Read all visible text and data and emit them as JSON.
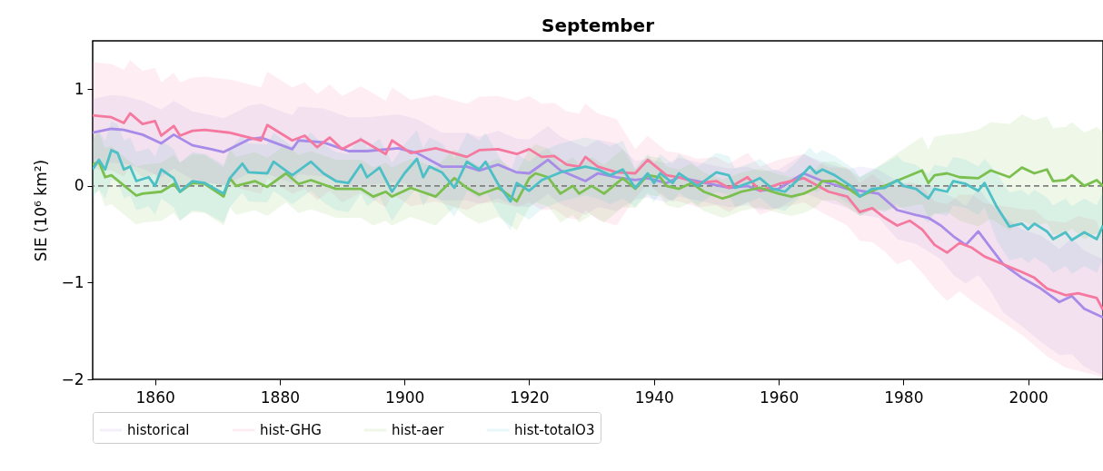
{
  "chart_data": {
    "type": "line",
    "title": "September",
    "ylabel": "SIE (10⁶ km²)",
    "xlim": [
      1850,
      2012
    ],
    "xticks": [
      1860,
      1880,
      1900,
      1920,
      1940,
      1960,
      1980,
      2000
    ],
    "ylim": [
      -2,
      1.5
    ],
    "yticks": [
      {
        "value": -2,
        "label": "−2"
      },
      {
        "value": -1,
        "label": "−1"
      },
      0,
      1
    ],
    "legend": "bottom",
    "line_style": "solid",
    "ref_lines": [
      {
        "axis": "y",
        "value": 0,
        "color": "#808080",
        "line_style": "dashed"
      }
    ],
    "series": [
      {
        "name": "historical",
        "color": "#a78be8",
        "x": [
          1850,
          1853,
          1855,
          1858,
          1861,
          1863,
          1866,
          1869,
          1871,
          1875,
          1877,
          1882,
          1883,
          1887,
          1891,
          1894,
          1899,
          1902,
          1906,
          1910,
          1912,
          1915,
          1918,
          1920,
          1923,
          1925,
          1929,
          1931,
          1934,
          1937,
          1939,
          1942,
          1944,
          1949,
          1952,
          1955,
          1957,
          1960,
          1964,
          1967,
          1971,
          1973,
          1976,
          1979,
          1982,
          1984,
          1986,
          1988,
          1990,
          1992,
          1994,
          1996,
          1999,
          2002,
          2005,
          2007,
          2009,
          2012
        ],
        "values": [
          0.55,
          0.59,
          0.58,
          0.53,
          0.44,
          0.53,
          0.42,
          0.38,
          0.35,
          0.48,
          0.5,
          0.38,
          0.47,
          0.45,
          0.36,
          0.36,
          0.39,
          0.34,
          0.2,
          0.2,
          0.16,
          0.22,
          0.14,
          0.13,
          0.27,
          0.16,
          0.05,
          0.13,
          0.09,
          0.06,
          0.08,
          0.03,
          0.09,
          0.02,
          -0.02,
          0,
          -0.05,
          -0.03,
          0.13,
          0.05,
          -0.03,
          -0.05,
          -0.08,
          -0.25,
          -0.3,
          -0.33,
          -0.41,
          -0.52,
          -0.61,
          -0.47,
          -0.64,
          -0.81,
          -0.95,
          -1.06,
          -1.2,
          -1.14,
          -1.27,
          -1.36
        ],
        "lower": [
          0.2,
          0.24,
          0.23,
          0.18,
          0.09,
          0.18,
          0.07,
          0.03,
          0,
          0.13,
          0.15,
          0.03,
          0.12,
          0.1,
          0.01,
          0.01,
          0.04,
          -0.01,
          -0.15,
          -0.15,
          -0.19,
          -0.13,
          -0.21,
          -0.22,
          -0.08,
          -0.19,
          -0.3,
          -0.22,
          -0.26,
          -0.14,
          -0.12,
          -0.17,
          -0.11,
          -0.18,
          -0.22,
          -0.2,
          -0.25,
          -0.23,
          -0.07,
          -0.15,
          -0.23,
          -0.3,
          -0.33,
          -0.55,
          -0.6,
          -0.68,
          -0.76,
          -0.92,
          -1.01,
          -0.92,
          -1.09,
          -1.31,
          -1.45,
          -1.61,
          -1.75,
          -1.74,
          -1.87,
          -1.96
        ],
        "upper": [
          0.9,
          0.94,
          0.93,
          0.88,
          0.79,
          0.88,
          0.77,
          0.73,
          0.7,
          0.83,
          0.85,
          0.73,
          0.82,
          0.8,
          0.71,
          0.71,
          0.74,
          0.69,
          0.55,
          0.55,
          0.51,
          0.57,
          0.49,
          0.48,
          0.62,
          0.51,
          0.4,
          0.48,
          0.44,
          0.26,
          0.28,
          0.23,
          0.29,
          0.22,
          0.18,
          0.2,
          0.15,
          0.17,
          0.33,
          0.25,
          0.17,
          0.2,
          0.17,
          0.05,
          0,
          0.02,
          -0.06,
          -0.12,
          -0.21,
          -0.02,
          -0.19,
          -0.31,
          -0.45,
          -0.51,
          -0.65,
          -0.54,
          -0.67,
          -0.76
        ]
      },
      {
        "name": "hist-GHG",
        "color": "#f5799f",
        "x": [
          1850,
          1853,
          1855,
          1856,
          1858,
          1860,
          1861,
          1863,
          1864,
          1866,
          1868,
          1872,
          1877,
          1878,
          1882,
          1884,
          1886,
          1888,
          1890,
          1893,
          1897,
          1898,
          1901,
          1905,
          1910,
          1912,
          1915,
          1918,
          1920,
          1922,
          1924,
          1926,
          1928,
          1929,
          1931,
          1934,
          1937,
          1939,
          1942,
          1944,
          1947,
          1950,
          1952,
          1955,
          1957,
          1960,
          1964,
          1968,
          1971,
          1973,
          1975,
          1977,
          1979,
          1981,
          1983,
          1985,
          1987,
          1989,
          1991,
          1993,
          1996,
          1999,
          2001,
          2003,
          2006,
          2008,
          2011,
          2012
        ],
        "values": [
          0.73,
          0.71,
          0.65,
          0.75,
          0.64,
          0.67,
          0.52,
          0.62,
          0.52,
          0.57,
          0.58,
          0.55,
          0.47,
          0.63,
          0.47,
          0.52,
          0.4,
          0.5,
          0.38,
          0.48,
          0.33,
          0.47,
          0.34,
          0.39,
          0.3,
          0.37,
          0.38,
          0.33,
          0.38,
          0.3,
          0.31,
          0.22,
          0.2,
          0.3,
          0.2,
          0.14,
          0.13,
          0.27,
          0.11,
          0.09,
          0.03,
          0.05,
          -0.02,
          0.09,
          -0.05,
          0.02,
          0.08,
          -0.06,
          -0.11,
          -0.27,
          -0.23,
          -0.33,
          -0.41,
          -0.36,
          -0.45,
          -0.61,
          -0.69,
          -0.59,
          -0.64,
          -0.73,
          -0.81,
          -0.89,
          -0.95,
          -1.06,
          -1.13,
          -1.11,
          -1.16,
          -1.28
        ],
        "lower": [
          0.18,
          0.16,
          0.1,
          0.2,
          0.09,
          0.12,
          -0.03,
          0.07,
          -0.03,
          0.02,
          0.03,
          0,
          -0.08,
          0.08,
          -0.08,
          -0.03,
          -0.15,
          -0.05,
          -0.17,
          -0.07,
          -0.22,
          -0.08,
          -0.21,
          -0.16,
          -0.25,
          -0.18,
          -0.17,
          -0.22,
          -0.17,
          -0.25,
          -0.24,
          -0.33,
          -0.35,
          -0.25,
          -0.35,
          -0.41,
          -0.12,
          0.02,
          -0.14,
          -0.16,
          -0.22,
          -0.2,
          -0.27,
          -0.16,
          -0.3,
          -0.23,
          -0.17,
          -0.31,
          -0.41,
          -0.57,
          -0.58,
          -0.68,
          -0.81,
          -0.76,
          -0.9,
          -1.06,
          -1.19,
          -1.09,
          -1.19,
          -1.28,
          -1.41,
          -1.54,
          -1.65,
          -1.76,
          -1.88,
          -1.91,
          -1.96,
          -1.98
        ],
        "upper": [
          1.28,
          1.26,
          1.2,
          1.3,
          1.19,
          1.22,
          1.07,
          1.17,
          1.07,
          1.12,
          1.13,
          1.1,
          1.02,
          1.18,
          1.02,
          1.07,
          0.95,
          1.05,
          0.93,
          1.03,
          0.88,
          1.02,
          0.89,
          0.94,
          0.85,
          0.92,
          0.93,
          0.88,
          0.93,
          0.85,
          0.86,
          0.77,
          0.75,
          0.85,
          0.75,
          0.69,
          0.38,
          0.52,
          0.36,
          0.34,
          0.28,
          0.3,
          0.23,
          0.34,
          0.2,
          0.27,
          0.33,
          0.19,
          0.19,
          0.03,
          0.12,
          0.02,
          -0.01,
          0.04,
          0,
          -0.16,
          -0.19,
          -0.09,
          -0.09,
          -0.18,
          -0.21,
          -0.24,
          -0.25,
          -0.36,
          -0.38,
          -0.31,
          -0.36,
          -0.58
        ]
      },
      {
        "name": "hist-aer",
        "color": "#7bbf4e",
        "x": [
          1850,
          1851,
          1852,
          1853,
          1857,
          1858,
          1861,
          1863,
          1864,
          1866,
          1868,
          1871,
          1872,
          1873,
          1876,
          1878,
          1881,
          1883,
          1885,
          1889,
          1893,
          1895,
          1897,
          1898,
          1901,
          1905,
          1908,
          1910,
          1912,
          1915,
          1916,
          1918,
          1920,
          1921,
          1923,
          1925,
          1927,
          1928,
          1930,
          1932,
          1935,
          1937,
          1939,
          1941,
          1942,
          1944,
          1946,
          1948,
          1951,
          1952,
          1954,
          1957,
          1960,
          1962,
          1964,
          1966,
          1967,
          1969,
          1971,
          1973,
          1975,
          1977,
          1980,
          1983,
          1984,
          1985,
          1987,
          1989,
          1992,
          1994,
          1997,
          1999,
          2001,
          2003,
          2004,
          2006,
          2007,
          2009,
          2011,
          2012
        ],
        "values": [
          0.22,
          0.25,
          0.09,
          0.11,
          -0.1,
          -0.08,
          -0.06,
          0.02,
          -0.06,
          0.03,
          0.02,
          -0.11,
          0.08,
          0,
          0.05,
          -0.01,
          0.13,
          0.02,
          0.06,
          -0.03,
          -0.03,
          -0.11,
          -0.06,
          -0.11,
          -0.02,
          -0.11,
          0.08,
          -0.02,
          -0.09,
          -0.02,
          -0.06,
          -0.16,
          0.08,
          0.13,
          0.09,
          -0.08,
          0,
          -0.08,
          0,
          -0.08,
          0.08,
          -0.03,
          0.11,
          0.09,
          0,
          -0.03,
          0.03,
          -0.06,
          -0.13,
          -0.11,
          -0.06,
          -0.02,
          -0.08,
          -0.11,
          -0.08,
          -0.02,
          0.05,
          0.05,
          -0.02,
          -0.11,
          -0.05,
          0,
          0.08,
          0.16,
          0.03,
          0.11,
          0.13,
          0.09,
          0.08,
          0.16,
          0.09,
          0.19,
          0.13,
          0.17,
          0.05,
          0.06,
          0.11,
          0,
          0.06,
          0
        ],
        "lower": [
          -0.08,
          -0.05,
          -0.21,
          -0.19,
          -0.4,
          -0.38,
          -0.36,
          -0.28,
          -0.36,
          -0.27,
          -0.28,
          -0.41,
          -0.22,
          -0.3,
          -0.25,
          -0.31,
          -0.17,
          -0.28,
          -0.24,
          -0.33,
          -0.33,
          -0.41,
          -0.36,
          -0.41,
          -0.32,
          -0.41,
          -0.22,
          -0.32,
          -0.39,
          -0.32,
          -0.36,
          -0.46,
          -0.22,
          -0.17,
          -0.21,
          -0.38,
          -0.3,
          -0.38,
          -0.3,
          -0.38,
          -0.22,
          -0.23,
          -0.09,
          -0.11,
          -0.2,
          -0.23,
          -0.17,
          -0.26,
          -0.33,
          -0.31,
          -0.26,
          -0.22,
          -0.28,
          -0.31,
          -0.28,
          -0.22,
          -0.15,
          -0.15,
          -0.22,
          -0.31,
          -0.25,
          -0.25,
          -0.22,
          -0.19,
          -0.32,
          -0.29,
          -0.27,
          -0.36,
          -0.42,
          -0.34,
          -0.46,
          -0.36,
          -0.42,
          -0.38,
          -0.5,
          -0.49,
          -0.44,
          -0.55,
          -0.49,
          -0.55
        ],
        "upper": [
          0.52,
          0.55,
          0.39,
          0.41,
          0.2,
          0.22,
          0.24,
          0.32,
          0.24,
          0.33,
          0.32,
          0.19,
          0.38,
          0.3,
          0.35,
          0.29,
          0.43,
          0.32,
          0.36,
          0.27,
          0.27,
          0.19,
          0.24,
          0.19,
          0.28,
          0.19,
          0.38,
          0.28,
          0.21,
          0.28,
          0.24,
          0.14,
          0.38,
          0.43,
          0.39,
          0.22,
          0.3,
          0.22,
          0.3,
          0.22,
          0.38,
          0.17,
          0.31,
          0.29,
          0.2,
          0.17,
          0.23,
          0.14,
          0.07,
          0.09,
          0.14,
          0.18,
          0.12,
          0.09,
          0.12,
          0.18,
          0.25,
          0.25,
          0.18,
          0.09,
          0.15,
          0.25,
          0.38,
          0.51,
          0.38,
          0.51,
          0.53,
          0.54,
          0.58,
          0.66,
          0.64,
          0.74,
          0.68,
          0.72,
          0.6,
          0.61,
          0.66,
          0.55,
          0.61,
          0.55
        ]
      },
      {
        "name": "hist-totalO3",
        "color": "#4dbfc6",
        "x": [
          1850,
          1851,
          1852,
          1853,
          1854,
          1855,
          1856,
          1857,
          1859,
          1860,
          1861,
          1863,
          1864,
          1866,
          1868,
          1871,
          1872,
          1874,
          1875,
          1878,
          1879,
          1882,
          1885,
          1887,
          1889,
          1891,
          1893,
          1894,
          1896,
          1898,
          1900,
          1902,
          1903,
          1904,
          1906,
          1908,
          1910,
          1912,
          1913,
          1915,
          1917,
          1918,
          1920,
          1922,
          1925,
          1929,
          1931,
          1933,
          1935,
          1937,
          1939,
          1940,
          1941,
          1943,
          1944,
          1947,
          1950,
          1952,
          1953,
          1956,
          1957,
          1959,
          1961,
          1963,
          1965,
          1966,
          1967,
          1969,
          1972,
          1973,
          1975,
          1977,
          1979,
          1980,
          1982,
          1984,
          1985,
          1987,
          1988,
          1990,
          1992,
          1993,
          1995,
          1997,
          1999,
          2000,
          2001,
          2003,
          2004,
          2006,
          2007,
          2009,
          2011,
          2012
        ],
        "values": [
          0.17,
          0.27,
          0.17,
          0.37,
          0.34,
          0.17,
          0.2,
          0.05,
          0.09,
          0,
          0.17,
          0.08,
          -0.06,
          0.05,
          0.03,
          -0.08,
          0.08,
          0.23,
          0.14,
          0.13,
          0.25,
          0.11,
          0.25,
          0.13,
          0.05,
          0.03,
          0.22,
          0.09,
          0.19,
          -0.06,
          0.13,
          0.28,
          0.09,
          0.2,
          0.14,
          -0.02,
          0.25,
          0.17,
          0.25,
          0.02,
          -0.16,
          0.03,
          -0.05,
          0.06,
          0.14,
          0.2,
          0.17,
          0.11,
          0.17,
          -0.02,
          0.13,
          0.03,
          0.13,
          0.03,
          0.13,
          0,
          0.14,
          0.11,
          -0.02,
          0.05,
          0.08,
          -0.03,
          -0.06,
          0.06,
          0.2,
          0.13,
          0.17,
          0.11,
          -0.02,
          -0.11,
          -0.03,
          -0.02,
          0.06,
          0,
          -0.03,
          -0.13,
          -0.03,
          -0.06,
          0.05,
          0.02,
          -0.05,
          0.03,
          -0.22,
          -0.42,
          -0.39,
          -0.45,
          -0.39,
          -0.47,
          -0.55,
          -0.48,
          -0.56,
          -0.48,
          -0.55,
          -0.41
        ],
        "lower": [
          -0.13,
          -0.03,
          -0.13,
          0.07,
          0.04,
          -0.13,
          -0.1,
          -0.25,
          -0.21,
          -0.3,
          -0.13,
          -0.22,
          -0.36,
          -0.25,
          -0.27,
          -0.38,
          -0.22,
          -0.07,
          -0.16,
          -0.17,
          -0.05,
          -0.19,
          -0.05,
          -0.17,
          -0.25,
          -0.27,
          -0.08,
          -0.21,
          -0.11,
          -0.36,
          -0.17,
          -0.02,
          -0.21,
          -0.1,
          -0.16,
          -0.32,
          -0.05,
          -0.13,
          -0.05,
          -0.28,
          -0.46,
          -0.27,
          -0.35,
          -0.24,
          -0.16,
          -0.1,
          -0.13,
          -0.19,
          -0.13,
          -0.22,
          -0.07,
          -0.17,
          -0.07,
          -0.17,
          -0.07,
          -0.2,
          -0.06,
          -0.09,
          -0.22,
          -0.15,
          -0.12,
          -0.23,
          -0.26,
          -0.14,
          0,
          -0.07,
          -0.03,
          -0.09,
          -0.22,
          -0.31,
          -0.23,
          -0.27,
          -0.19,
          -0.25,
          -0.28,
          -0.38,
          -0.28,
          -0.31,
          -0.2,
          -0.23,
          -0.3,
          -0.22,
          -0.57,
          -0.77,
          -0.74,
          -0.8,
          -0.74,
          -0.82,
          -0.9,
          -0.83,
          -0.91,
          -0.83,
          -0.9,
          -0.76
        ],
        "upper": [
          0.47,
          0.57,
          0.47,
          0.67,
          0.64,
          0.47,
          0.5,
          0.35,
          0.39,
          0.3,
          0.47,
          0.38,
          0.24,
          0.35,
          0.33,
          0.22,
          0.38,
          0.53,
          0.44,
          0.43,
          0.55,
          0.41,
          0.55,
          0.43,
          0.35,
          0.33,
          0.52,
          0.39,
          0.49,
          0.24,
          0.43,
          0.58,
          0.39,
          0.5,
          0.44,
          0.28,
          0.55,
          0.47,
          0.55,
          0.32,
          0.14,
          0.33,
          0.25,
          0.36,
          0.44,
          0.5,
          0.47,
          0.41,
          0.47,
          0.18,
          0.33,
          0.23,
          0.33,
          0.23,
          0.33,
          0.2,
          0.34,
          0.31,
          0.18,
          0.25,
          0.28,
          0.17,
          0.14,
          0.26,
          0.4,
          0.33,
          0.37,
          0.31,
          0.18,
          0.09,
          0.17,
          0.23,
          0.31,
          0.25,
          0.22,
          0.12,
          0.22,
          0.19,
          0.3,
          0.27,
          0.2,
          0.28,
          0.13,
          -0.07,
          -0.04,
          -0.1,
          -0.04,
          -0.12,
          -0.2,
          -0.13,
          -0.21,
          -0.13,
          -0.2,
          -0.06
        ]
      }
    ]
  }
}
